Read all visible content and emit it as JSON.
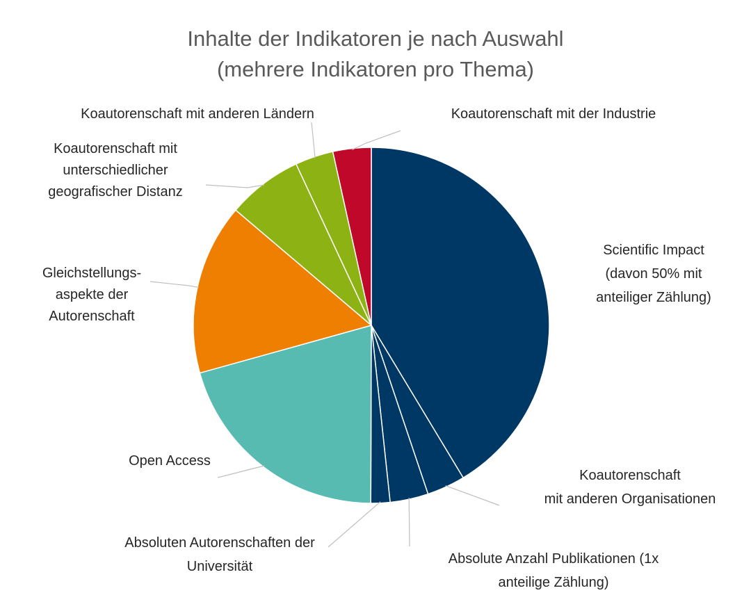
{
  "chart_data": {
    "type": "pie",
    "title": [
      "Inhalte der Indikatoren je nach Auswahl",
      "(mehrere Indikatoren pro Thema)"
    ],
    "start_angle_deg": 0,
    "direction": "clockwise",
    "slices": [
      {
        "label": [
          "Scientific Impact",
          "(davon 50% mit",
          "anteiliger Zählung)"
        ],
        "value": 42.9,
        "color": "#003865"
      },
      {
        "label": [
          "Koautorenschaft",
          "mit anderen Organisationen"
        ],
        "value": 3.6,
        "color": "#003865"
      },
      {
        "label": [
          "Absolute Anzahl Publikationen (1x",
          "anteilige Zählung)"
        ],
        "value": 3.6,
        "color": "#003865"
      },
      {
        "label": [
          "Absoluten Autorenschaften der",
          "Universität"
        ],
        "value": 1.8,
        "color": "#003865"
      },
      {
        "label": [
          "Open Access"
        ],
        "value": 21.4,
        "color": "#57bbb1"
      },
      {
        "label": [
          "Gleichstellungs-",
          "aspekte der",
          "Autorenschaft"
        ],
        "value": 16.1,
        "color": "#ee7f00"
      },
      {
        "label": [
          "Koautorenschaft mit",
          "unterschiedlicher",
          "geografischer Distanz"
        ],
        "value": 7.1,
        "color": "#8db214"
      },
      {
        "label": [
          "Koautorenschaft mit anderen Ländern"
        ],
        "value": 3.6,
        "color": "#8db214"
      },
      {
        "label": [
          "Koautorenschaft mit der Industrie"
        ],
        "value": 3.6,
        "color": "#c0092a"
      }
    ]
  }
}
